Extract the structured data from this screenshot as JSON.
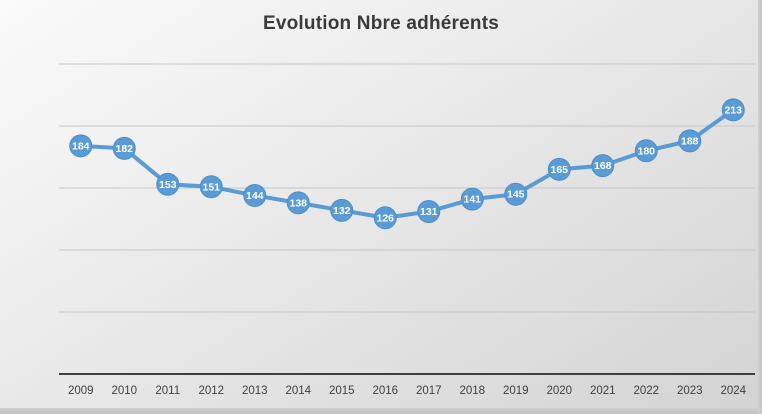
{
  "window": {
    "background_top": "#fafafa",
    "background_bottom": "#d3d3d3",
    "edge_shade": "#c2c2c2"
  },
  "chart_data": {
    "type": "line",
    "title": "Evolution Nbre adhérents",
    "categories": [
      "2009",
      "2010",
      "2011",
      "2012",
      "2013",
      "2014",
      "2015",
      "2016",
      "2017",
      "2018",
      "2019",
      "2020",
      "2021",
      "2022",
      "2023",
      "2024"
    ],
    "values": [
      184,
      182,
      153,
      151,
      144,
      138,
      132,
      126,
      131,
      141,
      145,
      165,
      168,
      180,
      188,
      213
    ],
    "xlabel": "",
    "ylabel": "",
    "ylim": [
      0,
      250
    ],
    "gridline_values": [
      50,
      100,
      150,
      200,
      250
    ],
    "grid": true,
    "legend": "none",
    "data_labels": "inside-marker",
    "colors": {
      "line": "#5b9bd5",
      "marker_fill": "#5b9bd5",
      "marker_stroke": "#4d8fce",
      "data_label_text": "#ffffff",
      "gridline": "#c5c7c8",
      "axis_line": "#3f3f3f",
      "tick_label": "#404040",
      "title": "#3a3a3a"
    }
  }
}
